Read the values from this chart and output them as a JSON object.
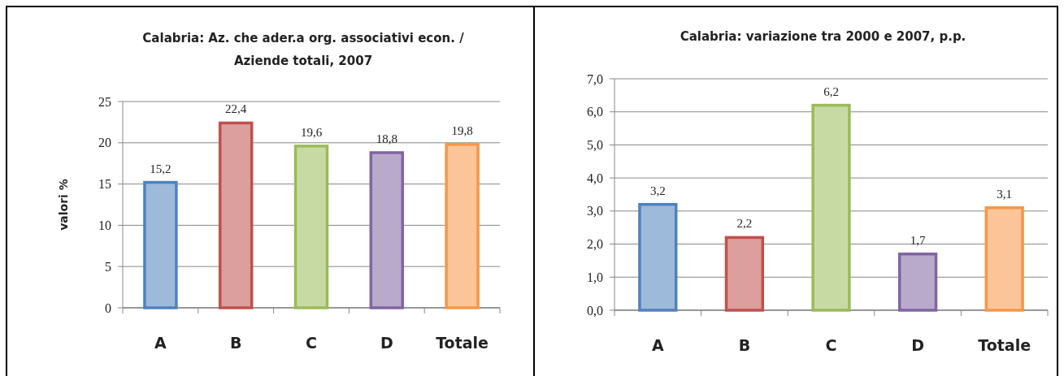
{
  "chart_data": [
    {
      "type": "bar",
      "title": "Calabria: Az. che ader.a org. associativi econ. / Aziende totali, 2007",
      "ylabel": "valori %",
      "categories": [
        "A",
        "B",
        "C",
        "D",
        "Totale"
      ],
      "values": [
        15.2,
        22.4,
        19.6,
        18.8,
        19.8
      ],
      "value_labels": [
        "15,2",
        "22,4",
        "19,6",
        "18,8",
        "19,8"
      ],
      "colors": [
        "#4f81bd",
        "#c0504d",
        "#9bbb59",
        "#8064a2",
        "#f79646"
      ],
      "ylim": [
        0,
        25
      ],
      "yticks": [
        0,
        5,
        10,
        15,
        20,
        25
      ],
      "grid": "y"
    },
    {
      "type": "bar",
      "title": "Calabria: variazione tra 2000 e 2007, p.p.",
      "categories": [
        "A",
        "B",
        "C",
        "D",
        "Totale"
      ],
      "values": [
        3.2,
        2.2,
        6.2,
        1.7,
        3.1
      ],
      "value_labels": [
        "3,2",
        "2,2",
        "6,2",
        "1,7",
        "3,1"
      ],
      "colors": [
        "#4f81bd",
        "#c0504d",
        "#9bbb59",
        "#8064a2",
        "#f79646"
      ],
      "ylim": [
        0,
        7
      ],
      "yticks": [
        {
          "value": 0,
          "label": "0,0"
        },
        {
          "value": 1,
          "label": "1,0"
        },
        {
          "value": 2,
          "label": "2,0"
        },
        {
          "value": 3,
          "label": "3,0"
        },
        {
          "value": 4,
          "label": "4,0"
        },
        {
          "value": 5,
          "label": "5,0"
        },
        {
          "value": 6,
          "label": "6,0"
        },
        {
          "value": 7,
          "label": "7,0"
        }
      ],
      "grid": "y"
    }
  ]
}
